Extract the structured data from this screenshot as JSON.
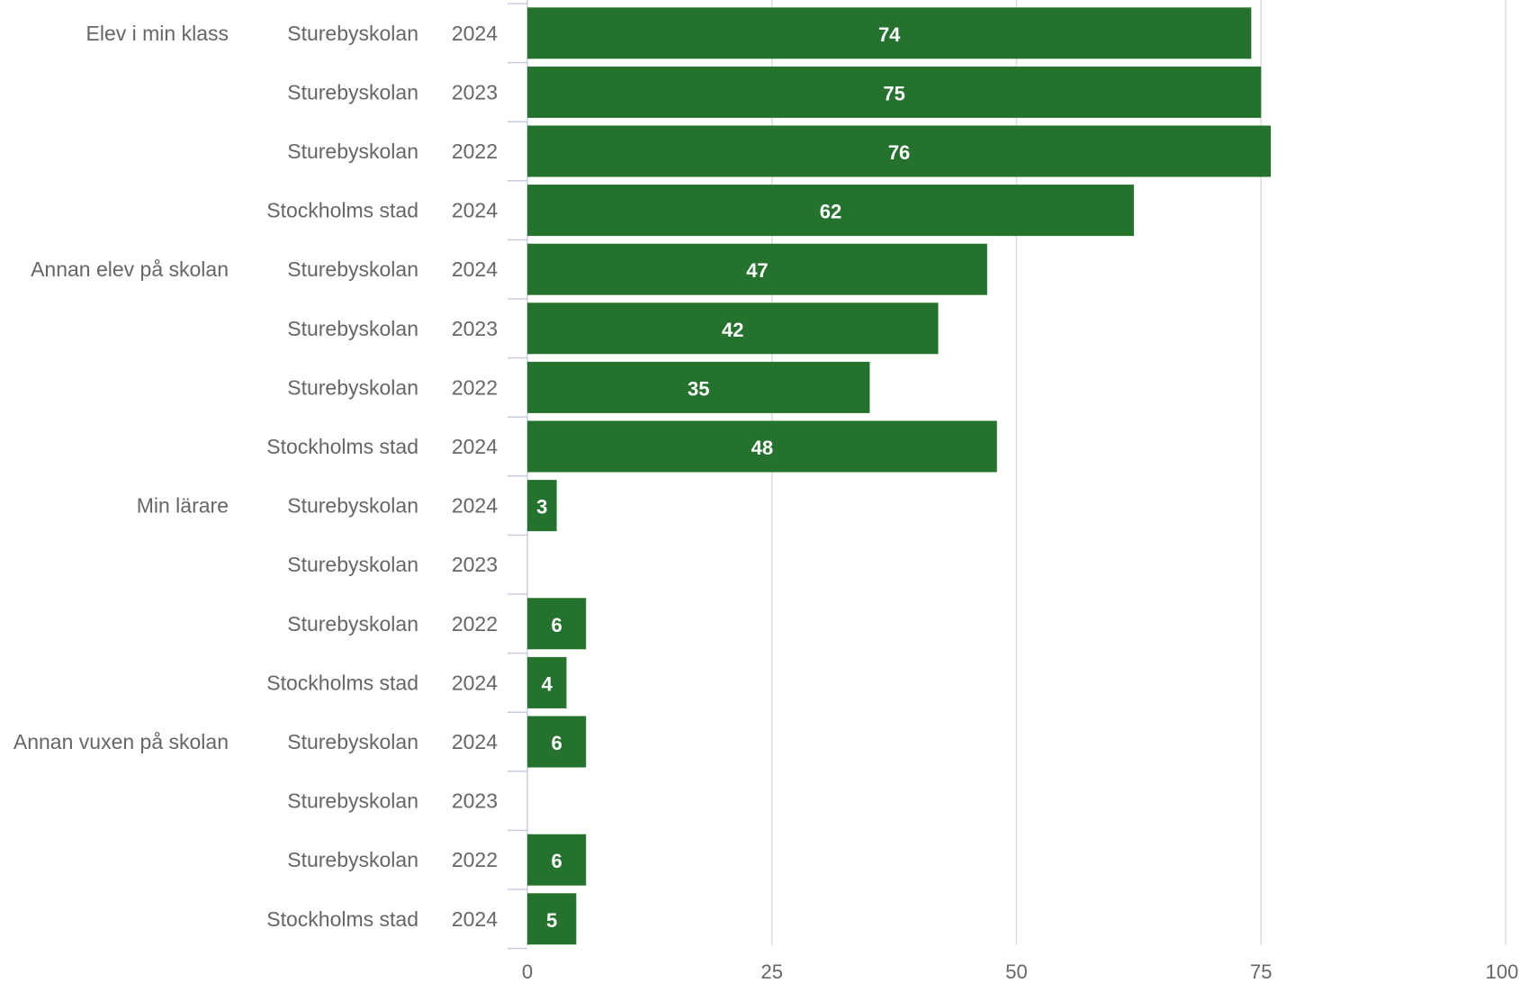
{
  "chart_data": {
    "type": "bar",
    "orientation": "horizontal",
    "xlim": [
      0,
      100
    ],
    "x_ticks": [
      0,
      25,
      50,
      75,
      100
    ],
    "grid": true,
    "color": "#25722e",
    "groups": [
      {
        "label": "Elev i min klass",
        "bars": [
          {
            "unit": "Sturebyskolan",
            "year": "2024",
            "value": 74
          },
          {
            "unit": "Sturebyskolan",
            "year": "2023",
            "value": 75
          },
          {
            "unit": "Sturebyskolan",
            "year": "2022",
            "value": 76
          },
          {
            "unit": "Stockholms stad",
            "year": "2024",
            "value": 62
          }
        ]
      },
      {
        "label": "Annan elev på skolan",
        "bars": [
          {
            "unit": "Sturebyskolan",
            "year": "2024",
            "value": 47
          },
          {
            "unit": "Sturebyskolan",
            "year": "2023",
            "value": 42
          },
          {
            "unit": "Sturebyskolan",
            "year": "2022",
            "value": 35
          },
          {
            "unit": "Stockholms stad",
            "year": "2024",
            "value": 48
          }
        ]
      },
      {
        "label": "Min lärare",
        "bars": [
          {
            "unit": "Sturebyskolan",
            "year": "2024",
            "value": 3
          },
          {
            "unit": "Sturebyskolan",
            "year": "2023",
            "value": null
          },
          {
            "unit": "Sturebyskolan",
            "year": "2022",
            "value": 6
          },
          {
            "unit": "Stockholms stad",
            "year": "2024",
            "value": 4
          }
        ]
      },
      {
        "label": "Annan vuxen på skolan",
        "bars": [
          {
            "unit": "Sturebyskolan",
            "year": "2024",
            "value": 6
          },
          {
            "unit": "Sturebyskolan",
            "year": "2023",
            "value": null
          },
          {
            "unit": "Sturebyskolan",
            "year": "2022",
            "value": 6
          },
          {
            "unit": "Stockholms stad",
            "year": "2024",
            "value": 5
          }
        ]
      }
    ]
  }
}
